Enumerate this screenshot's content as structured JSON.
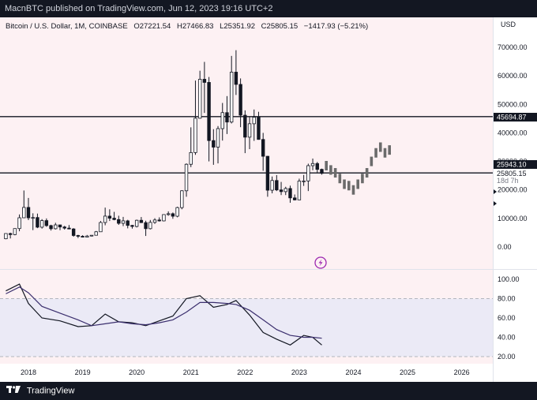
{
  "header": {
    "publisher_text": "MacnBTC published on TradingView.com, Jun 12, 2023 19:16 UTC+2"
  },
  "legend": {
    "symbol": "Bitcoin / U.S. Dollar, 1M, COINBASE",
    "open": "O27221.54",
    "high": "H27466.83",
    "low": "L25351.92",
    "close": "C25805.15",
    "change": "−1417.93 (−5.21%)"
  },
  "price_axis": {
    "currency": "USD",
    "ticks": [
      "70000.00",
      "60000.00",
      "50000.00",
      "40000.00",
      "30000.00",
      "20000.00",
      "10000.00",
      "0.00"
    ]
  },
  "price_labels": {
    "level_high": "45694.87",
    "level_low": "25943.10",
    "last_price": "25805.15",
    "countdown": "18d 7h"
  },
  "rsi_axis": {
    "ticks": [
      "100.00",
      "80.00",
      "60.00",
      "40.00",
      "20.00"
    ]
  },
  "time_axis": {
    "ticks": [
      "2018",
      "2019",
      "2020",
      "2021",
      "2022",
      "2023",
      "2024",
      "2025",
      "2026"
    ]
  },
  "footer": {
    "brand": "TradingView"
  },
  "colors": {
    "pane_bg": "#fdf1f3",
    "candle": "#131722",
    "projection": "#6b6b6b",
    "rsi_band": "#ebeaf6",
    "rsi_line": "#131722",
    "rsi_ma": "#3b2f6e",
    "accent": "#9c27b0"
  },
  "chart_data": [
    {
      "type": "candlestick",
      "timeframe": "1M",
      "y_unit": "USD",
      "ylim": [
        -3000,
        75000
      ],
      "horizontal_levels": [
        45694.87,
        25943.1
      ],
      "candles": [
        {
          "d": "2017-08",
          "o": 2870,
          "h": 4740,
          "l": 2700,
          "c": 4700
        },
        {
          "d": "2017-09",
          "o": 4700,
          "h": 5000,
          "l": 2970,
          "c": 4340
        },
        {
          "d": "2017-10",
          "o": 4340,
          "h": 6470,
          "l": 4100,
          "c": 6450
        },
        {
          "d": "2017-11",
          "o": 6450,
          "h": 11400,
          "l": 5500,
          "c": 10230
        },
        {
          "d": "2017-12",
          "o": 10230,
          "h": 19800,
          "l": 10500,
          "c": 13860
        },
        {
          "d": "2018-01",
          "o": 13860,
          "h": 17200,
          "l": 9400,
          "c": 10220
        },
        {
          "d": "2018-02",
          "o": 10220,
          "h": 11800,
          "l": 5900,
          "c": 10320
        },
        {
          "d": "2018-03",
          "o": 10320,
          "h": 11700,
          "l": 6600,
          "c": 6930
        },
        {
          "d": "2018-04",
          "o": 6930,
          "h": 9750,
          "l": 6430,
          "c": 9240
        },
        {
          "d": "2018-05",
          "o": 9240,
          "h": 10000,
          "l": 7060,
          "c": 7490
        },
        {
          "d": "2018-06",
          "o": 7490,
          "h": 7780,
          "l": 5750,
          "c": 6390
        },
        {
          "d": "2018-07",
          "o": 6390,
          "h": 8470,
          "l": 6120,
          "c": 7730
        },
        {
          "d": "2018-08",
          "o": 7730,
          "h": 7760,
          "l": 5880,
          "c": 7000
        },
        {
          "d": "2018-09",
          "o": 7000,
          "h": 7400,
          "l": 6100,
          "c": 6600
        },
        {
          "d": "2018-10",
          "o": 6600,
          "h": 7680,
          "l": 6200,
          "c": 6310
        },
        {
          "d": "2018-11",
          "o": 6310,
          "h": 6600,
          "l": 3600,
          "c": 4020
        },
        {
          "d": "2018-12",
          "o": 4020,
          "h": 4250,
          "l": 3120,
          "c": 3740
        },
        {
          "d": "2019-01",
          "o": 3740,
          "h": 4100,
          "l": 3390,
          "c": 3440
        },
        {
          "d": "2019-02",
          "o": 3440,
          "h": 4200,
          "l": 3360,
          "c": 3820
        },
        {
          "d": "2019-03",
          "o": 3820,
          "h": 4140,
          "l": 3680,
          "c": 4100
        },
        {
          "d": "2019-04",
          "o": 4100,
          "h": 5600,
          "l": 4060,
          "c": 5320
        },
        {
          "d": "2019-05",
          "o": 5320,
          "h": 9100,
          "l": 5300,
          "c": 8570
        },
        {
          "d": "2019-06",
          "o": 8570,
          "h": 13800,
          "l": 7600,
          "c": 10810
        },
        {
          "d": "2019-07",
          "o": 10810,
          "h": 13200,
          "l": 9100,
          "c": 10080
        },
        {
          "d": "2019-08",
          "o": 10080,
          "h": 12300,
          "l": 9350,
          "c": 9600
        },
        {
          "d": "2019-09",
          "o": 9600,
          "h": 10950,
          "l": 7740,
          "c": 8290
        },
        {
          "d": "2019-10",
          "o": 8290,
          "h": 10540,
          "l": 7300,
          "c": 9150
        },
        {
          "d": "2019-11",
          "o": 9150,
          "h": 9510,
          "l": 6520,
          "c": 7550
        },
        {
          "d": "2019-12",
          "o": 7550,
          "h": 7750,
          "l": 6430,
          "c": 7190
        },
        {
          "d": "2020-01",
          "o": 7190,
          "h": 9580,
          "l": 6850,
          "c": 9350
        },
        {
          "d": "2020-02",
          "o": 9350,
          "h": 10500,
          "l": 8400,
          "c": 8530
        },
        {
          "d": "2020-03",
          "o": 8530,
          "h": 9200,
          "l": 3850,
          "c": 6410
        },
        {
          "d": "2020-04",
          "o": 6410,
          "h": 9460,
          "l": 6150,
          "c": 8620
        },
        {
          "d": "2020-05",
          "o": 8620,
          "h": 10080,
          "l": 8100,
          "c": 9450
        },
        {
          "d": "2020-06",
          "o": 9450,
          "h": 10380,
          "l": 8900,
          "c": 9140
        },
        {
          "d": "2020-07",
          "o": 9140,
          "h": 11450,
          "l": 8970,
          "c": 11350
        },
        {
          "d": "2020-08",
          "o": 11350,
          "h": 12480,
          "l": 10950,
          "c": 11650
        },
        {
          "d": "2020-09",
          "o": 11650,
          "h": 12080,
          "l": 9880,
          "c": 10780
        },
        {
          "d": "2020-10",
          "o": 10780,
          "h": 14100,
          "l": 10400,
          "c": 13800
        },
        {
          "d": "2020-11",
          "o": 13800,
          "h": 19900,
          "l": 13200,
          "c": 19700
        },
        {
          "d": "2020-12",
          "o": 19700,
          "h": 29300,
          "l": 17600,
          "c": 28990
        },
        {
          "d": "2021-01",
          "o": 28990,
          "h": 41950,
          "l": 28000,
          "c": 33100
        },
        {
          "d": "2021-02",
          "o": 33100,
          "h": 58350,
          "l": 32300,
          "c": 45140
        },
        {
          "d": "2021-03",
          "o": 45140,
          "h": 61800,
          "l": 45000,
          "c": 58800
        },
        {
          "d": "2021-04",
          "o": 58800,
          "h": 64900,
          "l": 47000,
          "c": 57700
        },
        {
          "d": "2021-05",
          "o": 57700,
          "h": 59600,
          "l": 30000,
          "c": 37300
        },
        {
          "d": "2021-06",
          "o": 37300,
          "h": 41300,
          "l": 28800,
          "c": 35000
        },
        {
          "d": "2021-07",
          "o": 35000,
          "h": 42400,
          "l": 29300,
          "c": 41500
        },
        {
          "d": "2021-08",
          "o": 41500,
          "h": 50500,
          "l": 37300,
          "c": 47100
        },
        {
          "d": "2021-09",
          "o": 47100,
          "h": 52900,
          "l": 39600,
          "c": 43800
        },
        {
          "d": "2021-10",
          "o": 43800,
          "h": 67000,
          "l": 43300,
          "c": 61300
        },
        {
          "d": "2021-11",
          "o": 61300,
          "h": 69000,
          "l": 53300,
          "c": 57000
        },
        {
          "d": "2021-12",
          "o": 57000,
          "h": 59100,
          "l": 42000,
          "c": 46200
        },
        {
          "d": "2022-01",
          "o": 46200,
          "h": 47900,
          "l": 32900,
          "c": 38500
        },
        {
          "d": "2022-02",
          "o": 38500,
          "h": 45800,
          "l": 34300,
          "c": 43200
        },
        {
          "d": "2022-03",
          "o": 43200,
          "h": 48200,
          "l": 37200,
          "c": 45500
        },
        {
          "d": "2022-04",
          "o": 45500,
          "h": 47400,
          "l": 37600,
          "c": 37700
        },
        {
          "d": "2022-05",
          "o": 37700,
          "h": 40000,
          "l": 26700,
          "c": 31800
        },
        {
          "d": "2022-06",
          "o": 31800,
          "h": 31900,
          "l": 17600,
          "c": 19900
        },
        {
          "d": "2022-07",
          "o": 19900,
          "h": 24700,
          "l": 18800,
          "c": 23300
        },
        {
          "d": "2022-08",
          "o": 23300,
          "h": 25200,
          "l": 19600,
          "c": 20000
        },
        {
          "d": "2022-09",
          "o": 20000,
          "h": 22800,
          "l": 18200,
          "c": 19400
        },
        {
          "d": "2022-10",
          "o": 19400,
          "h": 21100,
          "l": 18200,
          "c": 20500
        },
        {
          "d": "2022-11",
          "o": 20500,
          "h": 21500,
          "l": 15500,
          "c": 17200
        },
        {
          "d": "2022-12",
          "o": 17200,
          "h": 18400,
          "l": 16300,
          "c": 16500
        },
        {
          "d": "2023-01",
          "o": 16500,
          "h": 23950,
          "l": 16500,
          "c": 23100
        },
        {
          "d": "2023-02",
          "o": 23100,
          "h": 25250,
          "l": 21400,
          "c": 23150
        },
        {
          "d": "2023-03",
          "o": 23150,
          "h": 29200,
          "l": 19600,
          "c": 28500
        },
        {
          "d": "2023-04",
          "o": 28500,
          "h": 31000,
          "l": 26900,
          "c": 29250
        },
        {
          "d": "2023-05",
          "o": 29250,
          "h": 29800,
          "l": 25850,
          "c": 27200
        },
        {
          "d": "2023-06",
          "o": 27221.54,
          "h": 27466.83,
          "l": 25351.92,
          "c": 25805.15
        }
      ],
      "projection_path": [
        {
          "d": "2023-07",
          "v": 28500
        },
        {
          "d": "2023-08",
          "v": 27000
        },
        {
          "d": "2023-09",
          "v": 26000
        },
        {
          "d": "2023-10",
          "v": 24000
        },
        {
          "d": "2023-11",
          "v": 22000
        },
        {
          "d": "2023-12",
          "v": 21500
        },
        {
          "d": "2024-01",
          "v": 20000
        },
        {
          "d": "2024-02",
          "v": 22000
        },
        {
          "d": "2024-03",
          "v": 24000
        },
        {
          "d": "2024-04",
          "v": 26000
        },
        {
          "d": "2024-05",
          "v": 30000
        },
        {
          "d": "2024-06",
          "v": 33000
        },
        {
          "d": "2024-07",
          "v": 35000
        },
        {
          "d": "2024-08",
          "v": 33000
        },
        {
          "d": "2024-09",
          "v": 34000
        }
      ]
    },
    {
      "type": "line",
      "indicator": "RSI",
      "ylim": [
        10,
        105
      ],
      "band": [
        20,
        80
      ],
      "x": [
        "2017-08",
        "2017-11",
        "2018-01",
        "2018-04",
        "2018-08",
        "2018-12",
        "2019-03",
        "2019-06",
        "2019-09",
        "2019-12",
        "2020-03",
        "2020-06",
        "2020-09",
        "2020-12",
        "2021-03",
        "2021-06",
        "2021-09",
        "2021-11",
        "2022-02",
        "2022-05",
        "2022-08",
        "2022-11",
        "2023-02",
        "2023-04",
        "2023-06"
      ],
      "series": [
        {
          "values": [
            88,
            95,
            75,
            60,
            57,
            51,
            52,
            64,
            56,
            55,
            52,
            57,
            62,
            80,
            83,
            71,
            74,
            78,
            63,
            45,
            38,
            32,
            42,
            40,
            32
          ]
        },
        {
          "values": [
            85,
            92,
            86,
            72,
            65,
            58,
            52,
            54,
            56,
            54,
            53,
            55,
            58,
            66,
            76,
            76,
            75,
            74,
            68,
            58,
            48,
            42,
            40,
            40,
            39
          ]
        }
      ]
    }
  ]
}
